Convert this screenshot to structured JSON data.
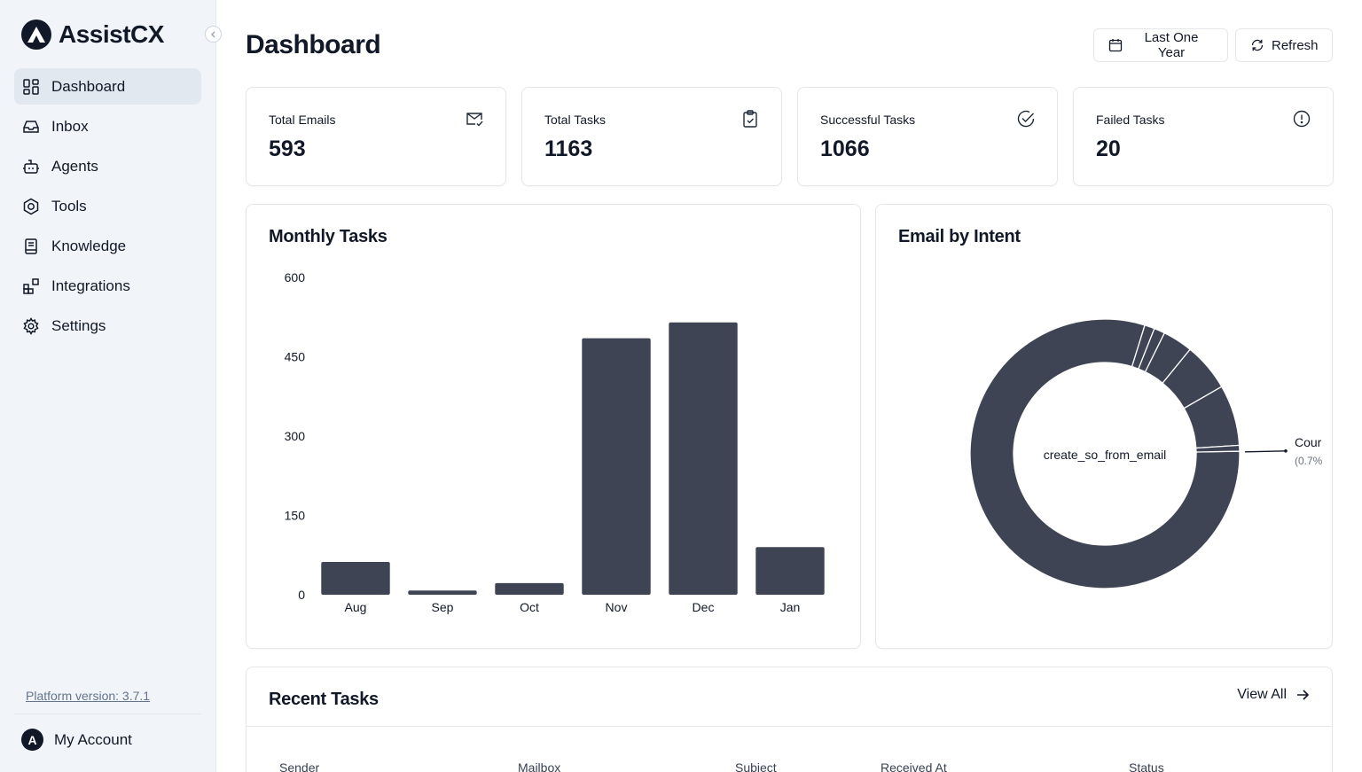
{
  "app": {
    "name": "AssistCX"
  },
  "sidebar": {
    "items": [
      {
        "label": "Dashboard",
        "icon": "dashboard-icon",
        "active": true
      },
      {
        "label": "Inbox",
        "icon": "inbox-icon"
      },
      {
        "label": "Agents",
        "icon": "bot-icon"
      },
      {
        "label": "Tools",
        "icon": "hexagon-icon"
      },
      {
        "label": "Knowledge",
        "icon": "book-icon"
      },
      {
        "label": "Integrations",
        "icon": "blocks-icon"
      },
      {
        "label": "Settings",
        "icon": "gear-icon"
      }
    ],
    "platform_version": "Platform version: 3.7.1",
    "account": {
      "avatar_letter": "A",
      "label": "My Account"
    }
  },
  "header": {
    "title": "Dashboard",
    "range_button": "Last One Year",
    "refresh_button": "Refresh"
  },
  "stats": [
    {
      "label": "Total Emails",
      "value": "593",
      "icon": "mail-check-icon"
    },
    {
      "label": "Total Tasks",
      "value": "1163",
      "icon": "clipboard-check-icon"
    },
    {
      "label": "Successful Tasks",
      "value": "1066",
      "icon": "check-circle-icon"
    },
    {
      "label": "Failed Tasks",
      "value": "20",
      "icon": "alert-circle-icon"
    }
  ],
  "monthly": {
    "title": "Monthly Tasks"
  },
  "intent": {
    "title": "Email by Intent"
  },
  "recent": {
    "title": "Recent Tasks",
    "view_all": "View All",
    "columns": [
      "Sender",
      "Mailbox",
      "Subject",
      "Received At",
      "Status"
    ]
  },
  "chart_data": [
    {
      "type": "bar",
      "title": "Monthly Tasks",
      "categories": [
        "Aug",
        "Sep",
        "Oct",
        "Nov",
        "Dec",
        "Jan"
      ],
      "values": [
        62,
        8,
        22,
        485,
        515,
        90
      ],
      "yticks": [
        0,
        150,
        300,
        450,
        600
      ],
      "ylim": [
        0,
        600
      ],
      "color": "#3f4454",
      "grid": false
    },
    {
      "type": "pie",
      "title": "Email by Intent",
      "donut": true,
      "center_label": "create_so_from_email",
      "segments": [
        {
          "value": 80.1
        },
        {
          "value": 1.2
        },
        {
          "value": 1.3
        },
        {
          "value": 3.6
        },
        {
          "value": 5.8
        },
        {
          "value": 7.3
        },
        {
          "value": 0.7
        }
      ],
      "callout": {
        "label": "Cour",
        "sublabel": "(0.7%"
      },
      "color": "#3f4454"
    }
  ]
}
